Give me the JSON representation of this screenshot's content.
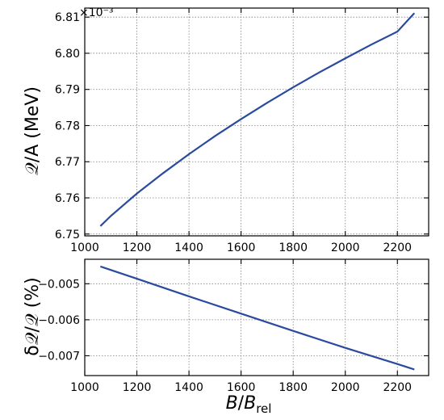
{
  "colors": {
    "series": "#2a4a9e"
  },
  "chart_data": [
    {
      "type": "line",
      "panel": "top",
      "title": "",
      "xlabel": "",
      "ylabel": "𝒬/A (MeV)",
      "offset_text": "×10⁻³",
      "xlim": [
        1000,
        2320
      ],
      "ylim": [
        6.7495,
        6.8125
      ],
      "grid": true,
      "xticks": [
        1000,
        1200,
        1400,
        1600,
        1800,
        2000,
        2200
      ],
      "xtick_labels": [
        "1000",
        "1200",
        "1400",
        "1600",
        "1800",
        "2000",
        "2200"
      ],
      "yticks": [
        6.75,
        6.76,
        6.77,
        6.78,
        6.79,
        6.8,
        6.81
      ],
      "ytick_labels": [
        "6.75",
        "6.76",
        "6.77",
        "6.78",
        "6.79",
        "6.80",
        "6.81"
      ],
      "series": [
        {
          "x": [
            1060,
            1100,
            1200,
            1300,
            1400,
            1500,
            1600,
            1700,
            1800,
            1900,
            2000,
            2100,
            2200,
            2265
          ],
          "y": [
            6.7522,
            6.755,
            6.7612,
            6.7668,
            6.7721,
            6.7771,
            6.7818,
            6.7863,
            6.7906,
            6.7947,
            6.7986,
            6.8024,
            6.806,
            6.8111
          ]
        }
      ]
    },
    {
      "type": "line",
      "panel": "bottom",
      "title": "",
      "xlabel": "B/B_rel",
      "ylabel": "δ𝒬/𝒬 (%)",
      "xlim": [
        1000,
        2320
      ],
      "ylim": [
        -0.00755,
        -0.00432
      ],
      "grid": true,
      "xticks": [
        1000,
        1200,
        1400,
        1600,
        1800,
        2000,
        2200
      ],
      "xtick_labels": [
        "1000",
        "1200",
        "1400",
        "1600",
        "1800",
        "2000",
        "2200"
      ],
      "yticks": [
        -0.005,
        -0.006,
        -0.007
      ],
      "ytick_labels": [
        "−0.005",
        "−0.006",
        "−0.007"
      ],
      "series": [
        {
          "x": [
            1060,
            1200,
            1400,
            1600,
            1800,
            2000,
            2200,
            2265
          ],
          "y": [
            -0.00452,
            -0.00486,
            -0.00535,
            -0.00583,
            -0.00631,
            -0.00678,
            -0.00723,
            -0.00738
          ]
        }
      ]
    }
  ]
}
